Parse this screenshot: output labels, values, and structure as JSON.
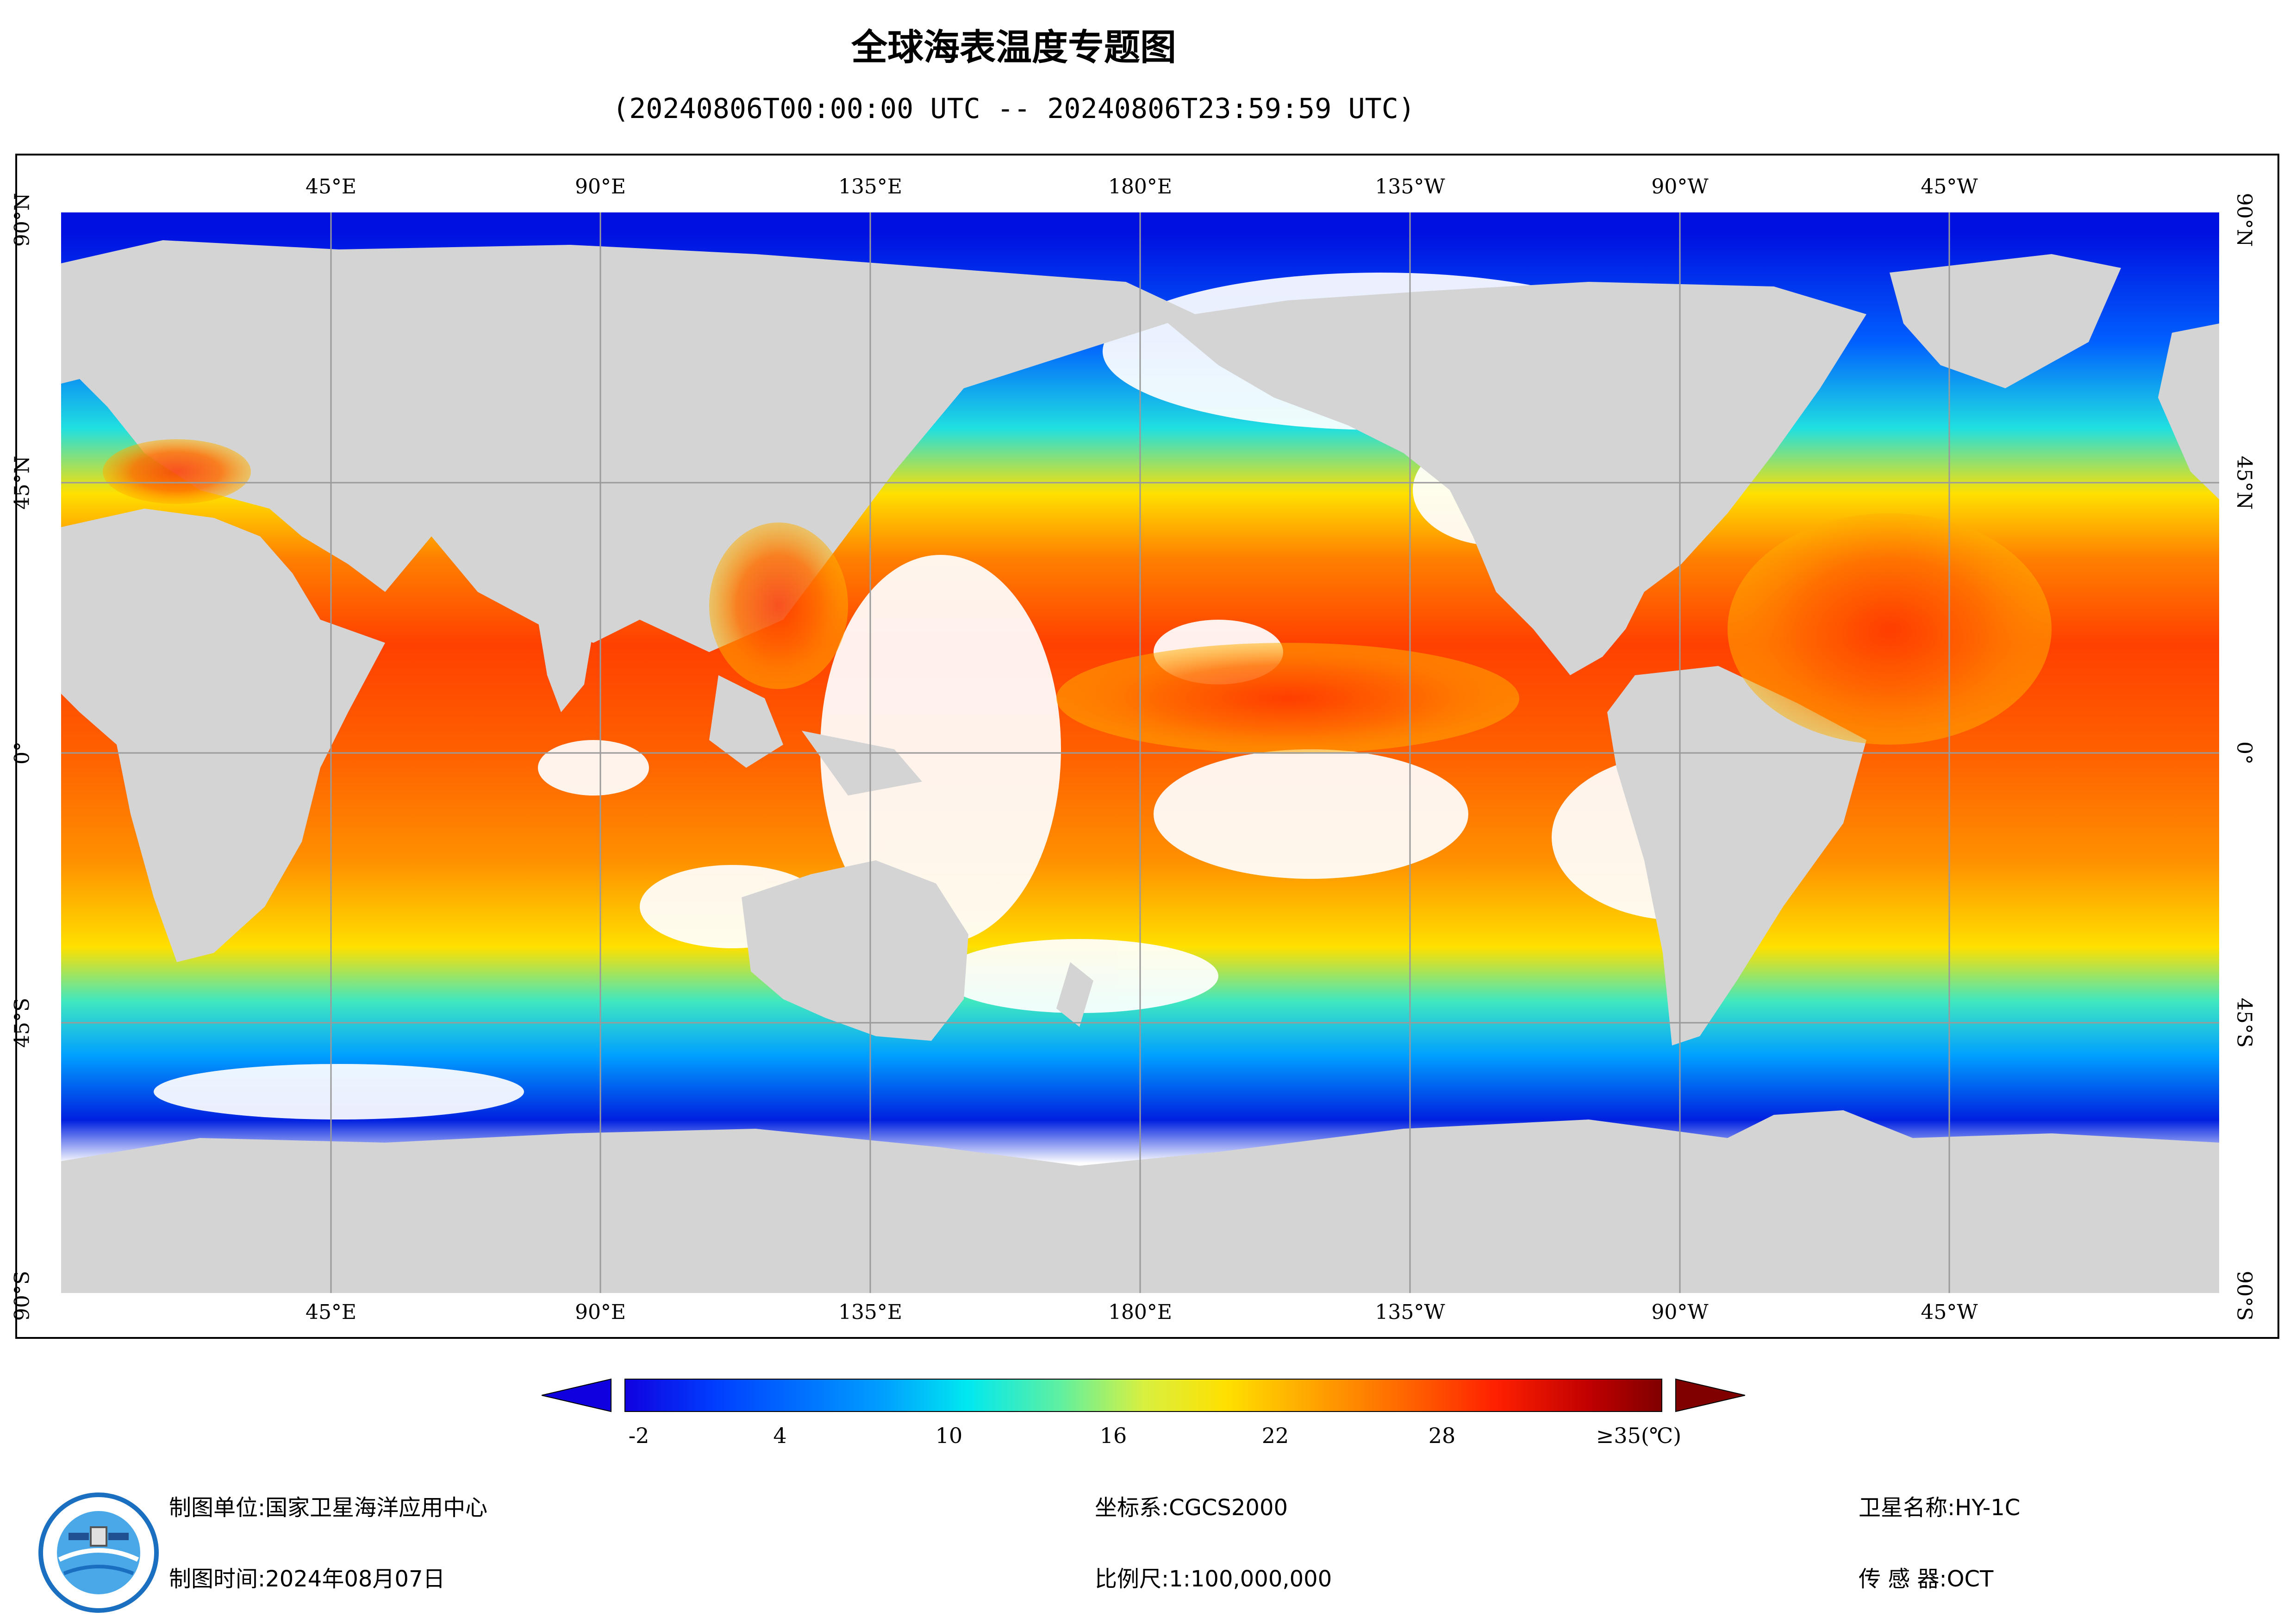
{
  "title": "全球海表温度专题图",
  "subtitle": "(20240806T00:00:00 UTC -- 20240806T23:59:59 UTC)",
  "longitude_labels": [
    "45°E",
    "90°E",
    "135°E",
    "180°E",
    "135°W",
    "90°W",
    "45°W"
  ],
  "latitude_labels": [
    "90°N",
    "45°N",
    "0°",
    "45°S",
    "90°S"
  ],
  "colors": {
    "land": "#d4d4d4",
    "no_data": "#ffffff",
    "grid": "#9a9a9a"
  },
  "colorbar": {
    "labels": [
      "-2",
      "4",
      "10",
      "16",
      "22",
      "28",
      "≥35(℃)"
    ],
    "stops": [
      "#1000e0",
      "#0040ff",
      "#00a0ff",
      "#00e8f0",
      "#60f0a0",
      "#d8f040",
      "#ffe000",
      "#ffa000",
      "#ff6000",
      "#ff2000",
      "#c00000",
      "#800000"
    ],
    "range": [
      -2,
      35
    ],
    "unit": "℃"
  },
  "footer": {
    "unit_label": "制图单位:国家卫星海洋应用中心",
    "time_label": "制图时间:2024年08月07日",
    "crs_label": "坐标系:CGCS2000",
    "scale_label": "比例尺:1:100,000,000",
    "satellite_label": "卫星名称:HY-1C",
    "sensor_label": "传 感 器:OCT"
  },
  "logo": {
    "icon": "nsoas-logo-icon"
  }
}
